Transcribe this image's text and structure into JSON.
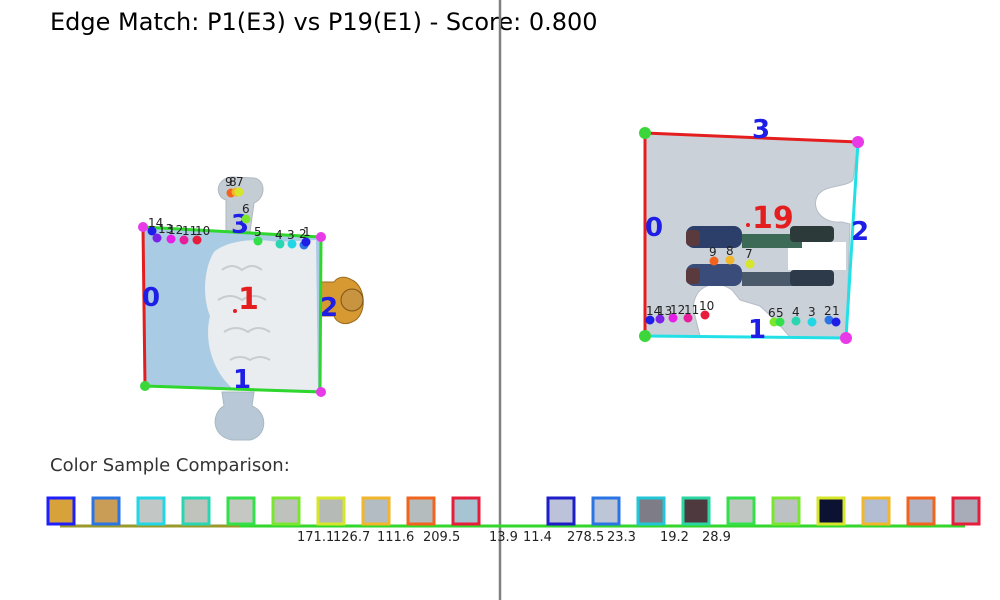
{
  "title": "Edge Match: P1(E3) vs P19(E1) - Score: 0.800",
  "section_label": "Color Sample Comparison:",
  "piece_left": {
    "id": "1",
    "edge_labels": {
      "e0": "0",
      "e1": "1",
      "e2": "2",
      "e3": "3"
    },
    "point_labels": [
      "14",
      "13",
      "12",
      "11",
      "10",
      "9",
      "8",
      "7",
      "6",
      "5",
      "4",
      "3",
      "2",
      "1"
    ]
  },
  "piece_right": {
    "id": "19",
    "edge_labels": {
      "e0": "0",
      "e1": "1",
      "e2": "2",
      "e3": "3"
    },
    "point_labels": [
      "14",
      "13",
      "12",
      "11",
      "10",
      "9",
      "8",
      "7",
      "6",
      "5",
      "4",
      "3",
      "2",
      "1"
    ]
  },
  "distances": [
    "171.1",
    "126.7",
    "111.6",
    "209.5",
    "13.9",
    "11.4",
    "278.5",
    "23.3",
    "19.2",
    "28.9"
  ],
  "swatches_left": [
    {
      "border": "#1e1eff",
      "fill": "#d7a23a"
    },
    {
      "border": "#2a74e6",
      "fill": "#c99d55"
    },
    {
      "border": "#22d6e6",
      "fill": "#c2c6c4"
    },
    {
      "border": "#2ad6b2",
      "fill": "#c0c2bc"
    },
    {
      "border": "#33e04a",
      "fill": "#c4c7c2"
    },
    {
      "border": "#7ae62e",
      "fill": "#bec2bd"
    },
    {
      "border": "#d6e62a",
      "fill": "#b6bab6"
    },
    {
      "border": "#f2b62a",
      "fill": "#b2bcc2"
    },
    {
      "border": "#f2641e",
      "fill": "#b4bcbe"
    },
    {
      "border": "#e61e3c",
      "fill": "#a6c4d2"
    }
  ],
  "swatches_right": [
    {
      "border": "#1e1ec8",
      "fill": "#bcc2da"
    },
    {
      "border": "#2a74e6",
      "fill": "#bcc6d6"
    },
    {
      "border": "#22c6d6",
      "fill": "#7e7c86"
    },
    {
      "border": "#2ad6a2",
      "fill": "#4e3a3e"
    },
    {
      "border": "#33e04a",
      "fill": "#c0c6c2"
    },
    {
      "border": "#7ae62e",
      "fill": "#bcc2c4"
    },
    {
      "border": "#d6e62a",
      "fill": "#0c1232"
    },
    {
      "border": "#f2b62a",
      "fill": "#b2bcd2"
    },
    {
      "border": "#f2641e",
      "fill": "#aeb6c8"
    },
    {
      "border": "#e61e3c",
      "fill": "#a8acb8"
    }
  ],
  "colors": {
    "edge_red": "#e41e1e",
    "edge_green": "#2ed62e",
    "edge_cyan": "#22e0e6",
    "corner_magenta": "#e83ae6",
    "corner_green": "#3ad63a",
    "edge_number": "#1e1ee6",
    "divider": "#808080"
  }
}
